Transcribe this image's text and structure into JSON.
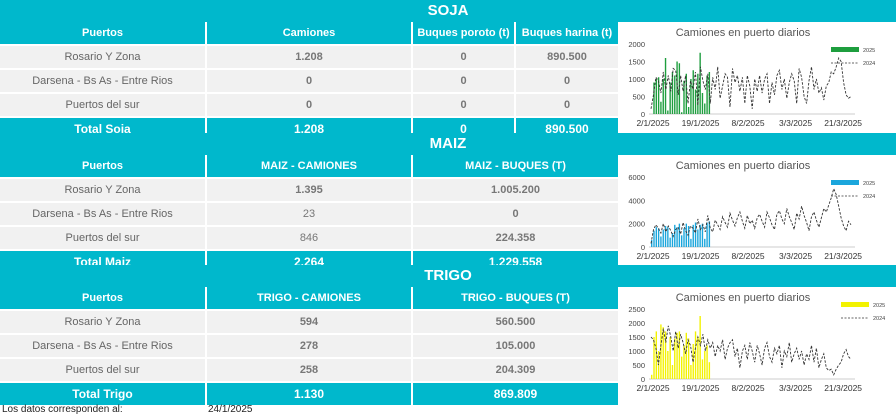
{
  "soja": {
    "title": "SOJA",
    "headers": [
      "Puertos",
      "Camiones",
      "Buques poroto (t)",
      "Buques harina (t)"
    ],
    "rows": [
      [
        "Rosario Y Zona",
        "1.208",
        "0",
        "890.500"
      ],
      [
        "Darsena - Bs As - Entre Rios",
        "0",
        "0",
        "0"
      ],
      [
        "Puertos del sur",
        "0",
        "0",
        "0"
      ]
    ],
    "total": [
      "Total Soja",
      "1.208",
      "0",
      "890.500"
    ]
  },
  "maiz": {
    "title": "MAIZ",
    "headers": [
      "Puertos",
      "MAIZ - CAMIONES",
      "MAIZ - BUQUES (T)"
    ],
    "rows": [
      [
        "Rosario Y Zona",
        "1.395",
        "1.005.200"
      ],
      [
        "Darsena - Bs As - Entre Rios",
        "23",
        "0"
      ],
      [
        "Puertos del sur",
        "846",
        "224.358"
      ]
    ],
    "total": [
      "Total Maiz",
      "2.264",
      "1.229.558"
    ]
  },
  "trigo": {
    "title": "TRIGO",
    "headers": [
      "Puertos",
      "TRIGO - CAMIONES",
      "TRIGO - BUQUES (T)"
    ],
    "rows": [
      [
        "Rosario Y Zona",
        "594",
        "560.500"
      ],
      [
        "Darsena - Bs As - Entre Rios",
        "278",
        "105.000"
      ],
      [
        "Puertos del sur",
        "258",
        "204.309"
      ]
    ],
    "total": [
      "Total Trigo",
      "1.130",
      "869.809"
    ]
  },
  "footer": {
    "label": "Los datos corresponden al:",
    "date": "24/1/2025"
  },
  "colors": {
    "accent": "#00b8cc",
    "soja_bar": "#1e9e3e",
    "maiz_bar": "#1ba6dc",
    "trigo_bar": "#f2f200"
  },
  "chart_data": [
    {
      "type": "line",
      "title": "Camiones en puerto diarios",
      "x_ticks": [
        "2/1/2025",
        "19/1/2025",
        "8/2/2025",
        "3/3/2025",
        "21/3/2025"
      ],
      "y_ticks": [
        0,
        500,
        1000,
        1500,
        2000
      ],
      "ylim": [
        0,
        2000
      ],
      "legend": [
        "2025",
        "2024"
      ],
      "legend_position": "top-right",
      "series": [
        {
          "name": "2025",
          "kind": "bar",
          "color": "#1e9e3e",
          "values": [
            0,
            900,
            1000,
            1050,
            350,
            1000,
            1600,
            100,
            900,
            1200,
            1100,
            1500,
            1450,
            50,
            950,
            1150,
            200,
            1000,
            1250,
            700,
            1150,
            1750,
            600,
            300,
            1100,
            1200
          ]
        },
        {
          "name": "2024",
          "kind": "line",
          "color": "#333333",
          "values": [
            150,
            550,
            1050,
            950,
            600,
            1200,
            700,
            1100,
            650,
            1300,
            1250,
            550,
            1100,
            650,
            1100,
            300,
            950,
            700,
            1200,
            250,
            1350,
            950,
            700,
            1150,
            300,
            1050,
            700,
            1350,
            450,
            800,
            1150,
            1050,
            200,
            1300,
            900,
            1100,
            650,
            1050,
            300,
            1100,
            800,
            150,
            1000,
            650,
            1100,
            600,
            1000,
            1150,
            300,
            900,
            550,
            1100,
            1250,
            700,
            1000,
            450,
            900,
            1150,
            950,
            300,
            1300,
            1050,
            500,
            300,
            950,
            1350,
            700,
            1000,
            600,
            750,
            400,
            800,
            900,
            1200,
            1150,
            1350,
            1600,
            1500,
            900,
            550,
            450,
            500
          ]
        }
      ]
    },
    {
      "type": "line",
      "title": "Camiones en puerto diarios",
      "x_ticks": [
        "2/1/2025",
        "19/1/2025",
        "8/2/2025",
        "3/3/2025",
        "21/3/2025"
      ],
      "y_ticks": [
        0,
        2000,
        4000,
        6000
      ],
      "ylim": [
        0,
        6000
      ],
      "legend": [
        "2025",
        "2024"
      ],
      "legend_position": "top-right",
      "series": [
        {
          "name": "2025",
          "kind": "bar",
          "color": "#1ba6dc",
          "values": [
            600,
            1400,
            1700,
            1600,
            900,
            1500,
            1800,
            1700,
            800,
            1200,
            1900,
            1700,
            2000,
            1000,
            1600,
            2000,
            1800,
            700,
            1900,
            2100,
            1500,
            1900,
            2000,
            700,
            2100,
            2200
          ]
        },
        {
          "name": "2024",
          "kind": "line",
          "color": "#333333",
          "values": [
            300,
            1500,
            1900,
            1600,
            1200,
            2000,
            1300,
            1800,
            1400,
            900,
            1500,
            1700,
            1100,
            2100,
            1400,
            1000,
            1800,
            1600,
            1200,
            2400,
            1500,
            1900,
            1300,
            2700,
            1600,
            1300,
            2300,
            1900,
            1500,
            2600,
            2100,
            1700,
            2900,
            2300,
            1800,
            2500,
            3000,
            2200,
            1600,
            2700,
            2000,
            2300,
            1600,
            2500,
            2800,
            2200,
            1700,
            3000,
            2500,
            1900,
            1500,
            2800,
            3100,
            2400,
            2000,
            3300,
            2600,
            2100,
            1500,
            2900,
            2400,
            3500,
            2700,
            2100,
            1400,
            2600,
            3000,
            2300,
            1700,
            2500,
            3300,
            3000,
            3600,
            4200,
            5000,
            4500,
            3500,
            2500,
            1800,
            1400,
            2200,
            1900
          ]
        }
      ]
    },
    {
      "type": "line",
      "title": "Camiones en puerto diarios",
      "x_ticks": [
        "2/1/2025",
        "19/1/2025",
        "8/2/2025",
        "3/3/2025",
        "21/3/2025"
      ],
      "y_ticks": [
        0,
        500,
        1000,
        1500,
        2000,
        2500
      ],
      "ylim": [
        0,
        2500
      ],
      "legend": [
        "2025",
        "2024"
      ],
      "legend_position": "top-right",
      "series": [
        {
          "name": "2025",
          "kind": "bar",
          "color": "#f2f200",
          "values": [
            150,
            1500,
            1700,
            1000,
            1950,
            1850,
            1700,
            1000,
            1500,
            500,
            1450,
            1650,
            1700,
            800,
            1200,
            1650,
            1450,
            500,
            1250,
            1700,
            1500,
            2250,
            700,
            1000,
            1200,
            600
          ]
        },
        {
          "name": "2024",
          "kind": "line",
          "color": "#333333",
          "values": [
            1500,
            1400,
            1100,
            500,
            1200,
            1800,
            1300,
            1900,
            1500,
            1000,
            1700,
            1100,
            1600,
            1300,
            900,
            1400,
            1200,
            600,
            1100,
            1500,
            1200,
            1600,
            1000,
            1400,
            1100,
            1300,
            800,
            1200,
            1000,
            1400,
            700,
            1100,
            1300,
            1400,
            800,
            1100,
            400,
            1000,
            1200,
            700,
            1300,
            1000,
            600,
            1200,
            900,
            500,
            1100,
            1300,
            800,
            600,
            1100,
            900,
            1200,
            400,
            1000,
            800,
            1300,
            600,
            900,
            1100,
            700,
            1000,
            500,
            900,
            700,
            1200,
            600,
            1100,
            400,
            700,
            900,
            400,
            300,
            350,
            150,
            350,
            500,
            600,
            900,
            1050,
            800,
            700
          ]
        }
      ]
    }
  ]
}
